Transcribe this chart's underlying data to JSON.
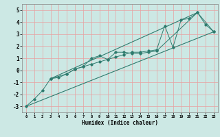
{
  "title": "",
  "xlabel": "Humidex (Indice chaleur)",
  "ylabel": "",
  "bg_color": "#cce8e4",
  "grid_color": "#e8a0a0",
  "line_color": "#2e7b6e",
  "xlim": [
    -0.5,
    23.5
  ],
  "ylim": [
    -3.5,
    5.5
  ],
  "xticks": [
    0,
    1,
    2,
    3,
    4,
    5,
    6,
    7,
    8,
    9,
    10,
    11,
    12,
    13,
    14,
    15,
    16,
    17,
    18,
    19,
    20,
    21,
    22,
    23
  ],
  "yticks": [
    -3,
    -2,
    -1,
    0,
    1,
    2,
    3,
    4,
    5
  ],
  "series": [
    {
      "x": [
        0,
        1,
        2,
        3,
        4,
        5,
        6,
        7,
        8,
        9,
        10,
        11,
        12,
        13,
        14,
        15,
        16,
        17,
        18,
        19,
        20,
        21,
        22,
        23
      ],
      "y": [
        -3.0,
        -2.4,
        -1.7,
        -0.7,
        -0.6,
        -0.3,
        0.1,
        0.3,
        0.5,
        0.7,
        0.9,
        1.1,
        1.3,
        1.5,
        1.5,
        1.6,
        1.7,
        3.7,
        1.9,
        4.2,
        4.3,
        4.8,
        3.8,
        3.2
      ],
      "marker": "D"
    },
    {
      "x": [
        3,
        5,
        6,
        7,
        8,
        9,
        10,
        11,
        12,
        13,
        14,
        15,
        16,
        21,
        23
      ],
      "y": [
        -0.7,
        -0.3,
        0.1,
        0.3,
        1.0,
        1.2,
        0.9,
        1.5,
        1.5,
        1.4,
        1.4,
        1.5,
        1.6,
        4.8,
        3.2
      ],
      "marker": "D"
    },
    {
      "x": [
        0,
        23
      ],
      "y": [
        -3.0,
        3.2
      ],
      "marker": null
    },
    {
      "x": [
        3,
        21
      ],
      "y": [
        -0.7,
        4.8
      ],
      "marker": null
    }
  ]
}
